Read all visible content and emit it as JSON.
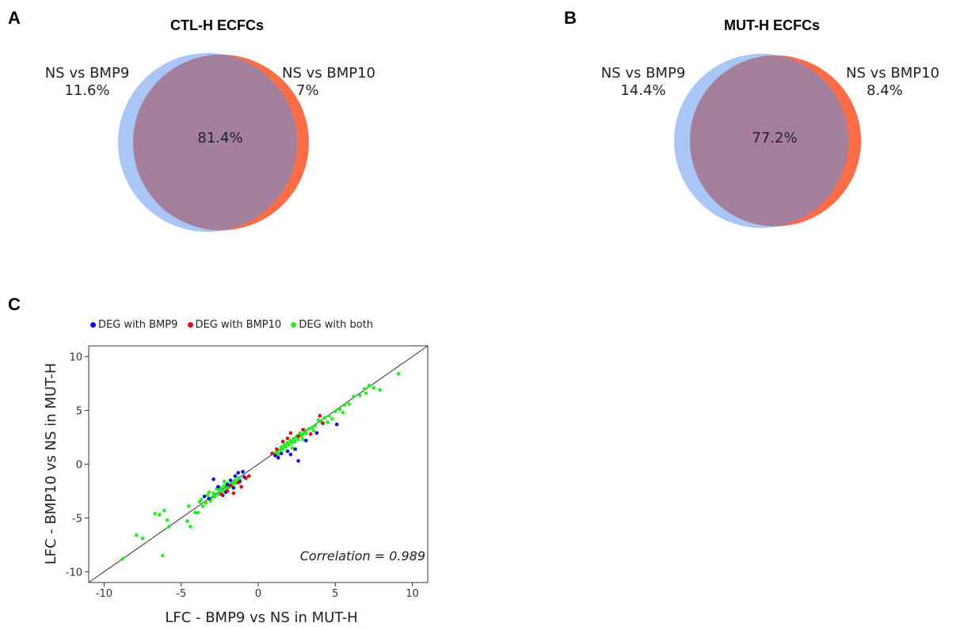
{
  "panels": {
    "a": {
      "letter": "A",
      "title": "CTL-H ECFCs",
      "left_label": "NS vs BMP9",
      "left_pct": "11.6%",
      "right_label": "NS vs BMP10",
      "right_pct": "7%",
      "overlap_pct": "81.4%"
    },
    "b": {
      "letter": "B",
      "title": "MUT-H ECFCs",
      "left_label": "NS vs BMP9",
      "left_pct": "14.4%",
      "right_label": "NS vs BMP10",
      "right_pct": "8.4%",
      "overlap_pct": "77.2%"
    },
    "c": {
      "letter": "C"
    }
  },
  "colors": {
    "bmp9_circle": "#aac6f7",
    "bmp10_circle": "#fb6d47",
    "overlap": "#a37f9c",
    "deg_bmp9": "#1010d0",
    "deg_bmp10": "#d81010",
    "deg_both": "#22ee22"
  },
  "chart_data": [
    {
      "type": "venn",
      "title": "CTL-H ECFCs",
      "sets": [
        "NS vs BMP9",
        "NS vs BMP10"
      ],
      "values": {
        "NS vs BMP9 only": 11.6,
        "NS vs BMP10 only": 7.0,
        "overlap": 81.4
      },
      "unit": "%"
    },
    {
      "type": "venn",
      "title": "MUT-H ECFCs",
      "sets": [
        "NS vs BMP9",
        "NS vs BMP10"
      ],
      "values": {
        "NS vs BMP9 only": 14.4,
        "NS vs BMP10 only": 8.4,
        "overlap": 77.2
      },
      "unit": "%"
    },
    {
      "type": "scatter",
      "title": "",
      "xlabel": "LFC - BMP9 vs NS in MUT-H",
      "ylabel": "LFC - BMP10 vs NS in MUT-H",
      "xlim": [
        -11,
        11
      ],
      "ylim": [
        -11,
        11
      ],
      "xticks": [
        -10,
        -5,
        0,
        5,
        10
      ],
      "yticks": [
        -10,
        -5,
        0,
        5,
        10
      ],
      "legend": [
        "DEG with BMP9",
        "DEG with BMP10",
        "DEG with both"
      ],
      "legend_position": "top",
      "annotation": "Correlation = 0.989",
      "reference_line": "y = x",
      "series": [
        {
          "name": "DEG with BMP9",
          "points": [
            [
              -3.5,
              -3.0
            ],
            [
              -3.2,
              -3.2
            ],
            [
              -2.9,
              -1.4
            ],
            [
              -2.6,
              -2.1
            ],
            [
              -2.3,
              -2.9
            ],
            [
              -2.0,
              -1.9
            ],
            [
              -1.8,
              -1.5
            ],
            [
              -1.5,
              -1.1
            ],
            [
              -1.3,
              -0.8
            ],
            [
              -1.2,
              -1.6
            ],
            [
              -1.0,
              -0.7
            ],
            [
              -0.9,
              -1.2
            ],
            [
              -1.6,
              -2.2
            ],
            [
              -2.1,
              -2.6
            ],
            [
              1.1,
              0.8
            ],
            [
              1.3,
              0.6
            ],
            [
              1.5,
              1.0
            ],
            [
              1.9,
              1.2
            ],
            [
              2.1,
              0.9
            ],
            [
              2.4,
              1.4
            ],
            [
              2.6,
              0.3
            ],
            [
              3.1,
              2.2
            ],
            [
              3.8,
              2.9
            ],
            [
              5.1,
              3.7
            ]
          ]
        },
        {
          "name": "DEG with BMP10",
          "points": [
            [
              -2.4,
              -2.8
            ],
            [
              -2.0,
              -2.5
            ],
            [
              -1.6,
              -2.7
            ],
            [
              -1.3,
              -1.7
            ],
            [
              -0.8,
              -1.3
            ],
            [
              -0.6,
              -1.1
            ],
            [
              -1.1,
              -2.1
            ],
            [
              -1.8,
              -2.0
            ],
            [
              0.9,
              1.0
            ],
            [
              1.2,
              1.4
            ],
            [
              1.6,
              2.1
            ],
            [
              1.9,
              2.4
            ],
            [
              2.1,
              2.9
            ],
            [
              2.6,
              2.6
            ],
            [
              2.9,
              3.2
            ],
            [
              3.4,
              2.8
            ],
            [
              4.0,
              4.5
            ],
            [
              4.2,
              3.8
            ]
          ]
        },
        {
          "name": "DEG with both",
          "points": [
            [
              -8.8,
              -8.8
            ],
            [
              -7.9,
              -6.6
            ],
            [
              -7.5,
              -6.9
            ],
            [
              -6.7,
              -4.6
            ],
            [
              -6.4,
              -4.7
            ],
            [
              -6.1,
              -4.3
            ],
            [
              -5.8,
              -5.8
            ],
            [
              -6.2,
              -8.5
            ],
            [
              -5.9,
              -5.2
            ],
            [
              -4.6,
              -5.3
            ],
            [
              -4.4,
              -5.8
            ],
            [
              -4.1,
              -4.5
            ],
            [
              -4.5,
              -3.9
            ],
            [
              -3.8,
              -3.5
            ],
            [
              -3.9,
              -4.5
            ],
            [
              -3.7,
              -3.3
            ],
            [
              -3.4,
              -3.6
            ],
            [
              -3.3,
              -2.9
            ],
            [
              -3.0,
              -3.1
            ],
            [
              -2.9,
              -2.7
            ],
            [
              -2.8,
              -3.0
            ],
            [
              -2.7,
              -2.3
            ],
            [
              -2.6,
              -2.8
            ],
            [
              -2.5,
              -2.4
            ],
            [
              -2.4,
              -2.2
            ],
            [
              -2.3,
              -2.5
            ],
            [
              -2.2,
              -2.0
            ],
            [
              -2.1,
              -2.3
            ],
            [
              -2.0,
              -1.8
            ],
            [
              -1.9,
              -2.1
            ],
            [
              -1.8,
              -1.9
            ],
            [
              -1.7,
              -1.6
            ],
            [
              -1.6,
              -1.8
            ],
            [
              -1.5,
              -1.5
            ],
            [
              -1.4,
              -1.7
            ],
            [
              -1.3,
              -1.3
            ],
            [
              -1.2,
              -1.4
            ],
            [
              -3.1,
              -3.4
            ],
            [
              -2.5,
              -2.6
            ],
            [
              -2.0,
              -2.2
            ],
            [
              -1.7,
              -2.0
            ],
            [
              -3.6,
              -3.9
            ],
            [
              -3.2,
              -2.6
            ],
            [
              -2.2,
              -1.6
            ],
            [
              1.0,
              1.0
            ],
            [
              1.2,
              1.1
            ],
            [
              1.4,
              1.3
            ],
            [
              1.5,
              1.6
            ],
            [
              1.6,
              1.4
            ],
            [
              1.7,
              1.8
            ],
            [
              1.8,
              1.6
            ],
            [
              1.9,
              2.0
            ],
            [
              2.0,
              1.8
            ],
            [
              2.1,
              2.2
            ],
            [
              2.2,
              2.0
            ],
            [
              2.3,
              2.4
            ],
            [
              2.4,
              2.1
            ],
            [
              2.5,
              2.6
            ],
            [
              2.6,
              2.3
            ],
            [
              2.7,
              2.9
            ],
            [
              2.8,
              2.6
            ],
            [
              2.9,
              2.8
            ],
            [
              3.0,
              3.2
            ],
            [
              3.1,
              2.9
            ],
            [
              3.3,
              3.3
            ],
            [
              3.5,
              3.4
            ],
            [
              3.7,
              3.6
            ],
            [
              3.9,
              4.1
            ],
            [
              4.1,
              3.9
            ],
            [
              4.3,
              4.3
            ],
            [
              4.6,
              4.5
            ],
            [
              4.8,
              4.2
            ],
            [
              5.0,
              4.9
            ],
            [
              5.3,
              5.1
            ],
            [
              5.6,
              5.5
            ],
            [
              5.9,
              5.6
            ],
            [
              6.2,
              6.3
            ],
            [
              6.6,
              6.4
            ],
            [
              6.9,
              7.0
            ],
            [
              7.2,
              7.3
            ],
            [
              7.5,
              7.1
            ],
            [
              7.9,
              6.9
            ],
            [
              7.0,
              6.6
            ],
            [
              9.1,
              8.4
            ],
            [
              1.3,
              0.9
            ],
            [
              2.2,
              1.5
            ],
            [
              2.9,
              2.3
            ],
            [
              3.6,
              3.1
            ],
            [
              4.5,
              3.9
            ],
            [
              5.5,
              4.8
            ]
          ]
        }
      ]
    }
  ]
}
